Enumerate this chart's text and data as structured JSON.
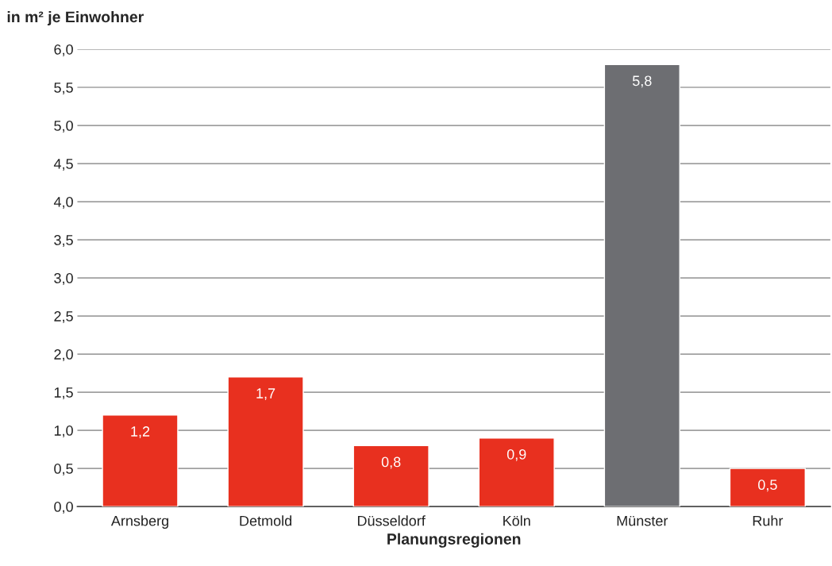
{
  "chart_data": {
    "type": "bar",
    "ylabel": "in m² je Einwohner",
    "xlabel": "Planungsregionen",
    "categories": [
      "Arnsberg",
      "Detmold",
      "Düsseldorf",
      "Köln",
      "Münster",
      "Ruhr"
    ],
    "values": [
      1.2,
      1.7,
      0.8,
      0.9,
      5.8,
      0.5
    ],
    "colors": [
      "#e8301f",
      "#e8301f",
      "#e8301f",
      "#e8301f",
      "#6d6e72",
      "#e8301f"
    ],
    "value_labels": [
      "1,2",
      "1,7",
      "0,8",
      "0,9",
      "5,8",
      "0,5"
    ],
    "ylim": [
      0,
      6
    ],
    "yticks": [
      {
        "value": 0,
        "label": "0,0"
      },
      {
        "value": 0.5,
        "label": "0,5"
      },
      {
        "value": 1,
        "label": "1,0"
      },
      {
        "value": 1.5,
        "label": "1,5"
      },
      {
        "value": 2,
        "label": "2,0"
      },
      {
        "value": 2.5,
        "label": "2,5"
      },
      {
        "value": 3,
        "label": "3,0"
      },
      {
        "value": 3.5,
        "label": "3,5"
      },
      {
        "value": 4,
        "label": "4,0"
      },
      {
        "value": 4.5,
        "label": "4,5"
      },
      {
        "value": 5,
        "label": "5,0"
      },
      {
        "value": 5.5,
        "label": "5,5"
      },
      {
        "value": 6,
        "label": "6,0"
      }
    ],
    "grid": "y"
  }
}
